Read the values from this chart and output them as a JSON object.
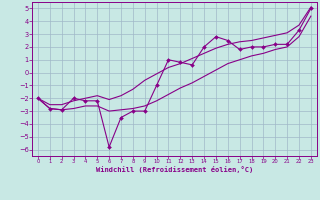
{
  "xlabel": "Windchill (Refroidissement éolien,°C)",
  "background_color": "#c8e8e4",
  "grid_color": "#a0b8c8",
  "line_color": "#880088",
  "x_data": [
    0,
    1,
    2,
    3,
    4,
    5,
    6,
    7,
    8,
    9,
    10,
    11,
    12,
    13,
    14,
    15,
    16,
    17,
    18,
    19,
    20,
    21,
    22,
    23
  ],
  "y_main": [
    -2.0,
    -2.8,
    -2.9,
    -2.0,
    -2.2,
    -2.2,
    -5.8,
    -3.5,
    -3.0,
    -3.0,
    -1.0,
    1.0,
    0.8,
    0.6,
    2.0,
    2.8,
    2.5,
    1.8,
    2.0,
    2.0,
    2.2,
    2.2,
    3.3,
    5.0
  ],
  "y_upper": [
    -2.0,
    -2.5,
    -2.5,
    -2.2,
    -2.0,
    -1.8,
    -2.1,
    -1.8,
    -1.3,
    -0.6,
    -0.1,
    0.4,
    0.7,
    1.1,
    1.5,
    1.9,
    2.2,
    2.4,
    2.5,
    2.7,
    2.9,
    3.1,
    3.7,
    5.1
  ],
  "y_lower": [
    -2.0,
    -2.8,
    -2.9,
    -2.8,
    -2.6,
    -2.6,
    -3.0,
    -2.9,
    -2.8,
    -2.6,
    -2.2,
    -1.7,
    -1.2,
    -0.8,
    -0.3,
    0.2,
    0.7,
    1.0,
    1.3,
    1.5,
    1.8,
    2.0,
    2.8,
    4.4
  ],
  "ylim": [
    -6.5,
    5.5
  ],
  "xlim": [
    -0.5,
    23.5
  ],
  "yticks": [
    -6,
    -5,
    -4,
    -3,
    -2,
    -1,
    0,
    1,
    2,
    3,
    4,
    5
  ],
  "xticks": [
    0,
    1,
    2,
    3,
    4,
    5,
    6,
    7,
    8,
    9,
    10,
    11,
    12,
    13,
    14,
    15,
    16,
    17,
    18,
    19,
    20,
    21,
    22,
    23
  ]
}
